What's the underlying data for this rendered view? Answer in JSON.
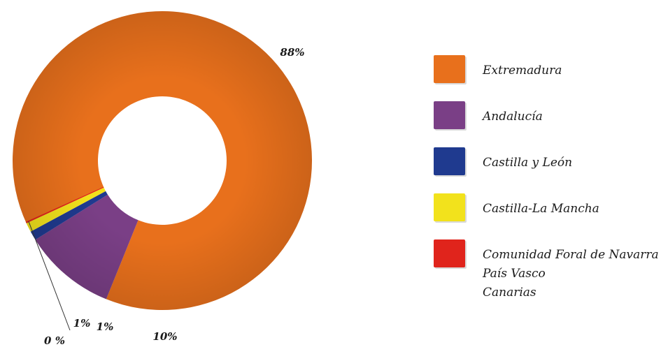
{
  "chart_data": {
    "type": "pie",
    "donut": true,
    "slices": [
      {
        "label": "Extremadura",
        "value": 88,
        "display": "88%",
        "color": "#e8701c"
      },
      {
        "label": "Andalucía",
        "value": 10,
        "display": "10%",
        "color": "#7a3f86"
      },
      {
        "label": "Castilla y León",
        "value": 1,
        "display": "1%",
        "color": "#1f3a8f"
      },
      {
        "label": "Castilla-La Mancha",
        "value": 1,
        "display": "1%",
        "color": "#f2e21c"
      },
      {
        "label": "Comunidad Foral de Navarra / País Vasco / Canarias",
        "value": 0,
        "display": "0 %",
        "color": "#e0241c"
      }
    ],
    "legend": {
      "position": "right",
      "entries": [
        {
          "color": "#e8701c",
          "lines": [
            "Extremadura"
          ]
        },
        {
          "color": "#7a3f86",
          "lines": [
            "Andalucía"
          ]
        },
        {
          "color": "#1f3a8f",
          "lines": [
            "Castilla y León"
          ]
        },
        {
          "color": "#f2e21c",
          "lines": [
            "Castilla-La Mancha"
          ]
        },
        {
          "color": "#e0241c",
          "lines": [
            "Comunidad Foral de Navarra",
            "País Vasco",
            "Canarias"
          ]
        }
      ]
    }
  }
}
